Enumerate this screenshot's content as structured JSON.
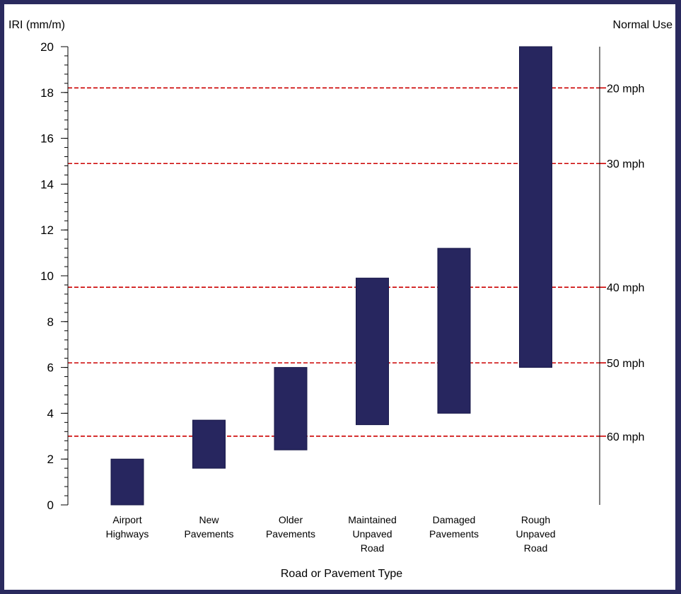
{
  "chart_data": {
    "type": "bar",
    "subtype": "floating-range",
    "ylabel": "IRI (mm/m)",
    "right_axis_label": "Normal Use",
    "xlabel": "Road or Pavement Type",
    "ylim": [
      0,
      20
    ],
    "y_major_ticks": [
      0,
      2,
      4,
      6,
      8,
      10,
      12,
      14,
      16,
      18,
      20
    ],
    "y_minor_step": 0.4,
    "categories": [
      {
        "label": [
          "Airport",
          "Highways"
        ],
        "low": 0.0,
        "high": 2.0
      },
      {
        "label": [
          "New",
          "Pavements"
        ],
        "low": 1.6,
        "high": 3.7
      },
      {
        "label": [
          "Older",
          "Pavements"
        ],
        "low": 2.4,
        "high": 6.0
      },
      {
        "label": [
          "Maintained",
          "Unpaved",
          "Road"
        ],
        "low": 3.5,
        "high": 9.9
      },
      {
        "label": [
          "Damaged",
          "Pavements"
        ],
        "low": 4.0,
        "high": 11.2
      },
      {
        "label": [
          "Rough",
          "Unpaved",
          "Road"
        ],
        "low": 6.0,
        "high": 20.0
      }
    ],
    "speed_lines": [
      {
        "iri": 18.2,
        "label": "20 mph"
      },
      {
        "iri": 14.9,
        "label": "30 mph"
      },
      {
        "iri": 9.5,
        "label": "40 mph"
      },
      {
        "iri": 6.2,
        "label": "50 mph"
      },
      {
        "iri": 3.0,
        "label": "60 mph"
      }
    ],
    "colors": {
      "bar": "#27265f",
      "bar_edge": "#1a1a4a",
      "speed_line": "#cc0000",
      "frame": "#2a2a5e"
    },
    "grid": false
  }
}
